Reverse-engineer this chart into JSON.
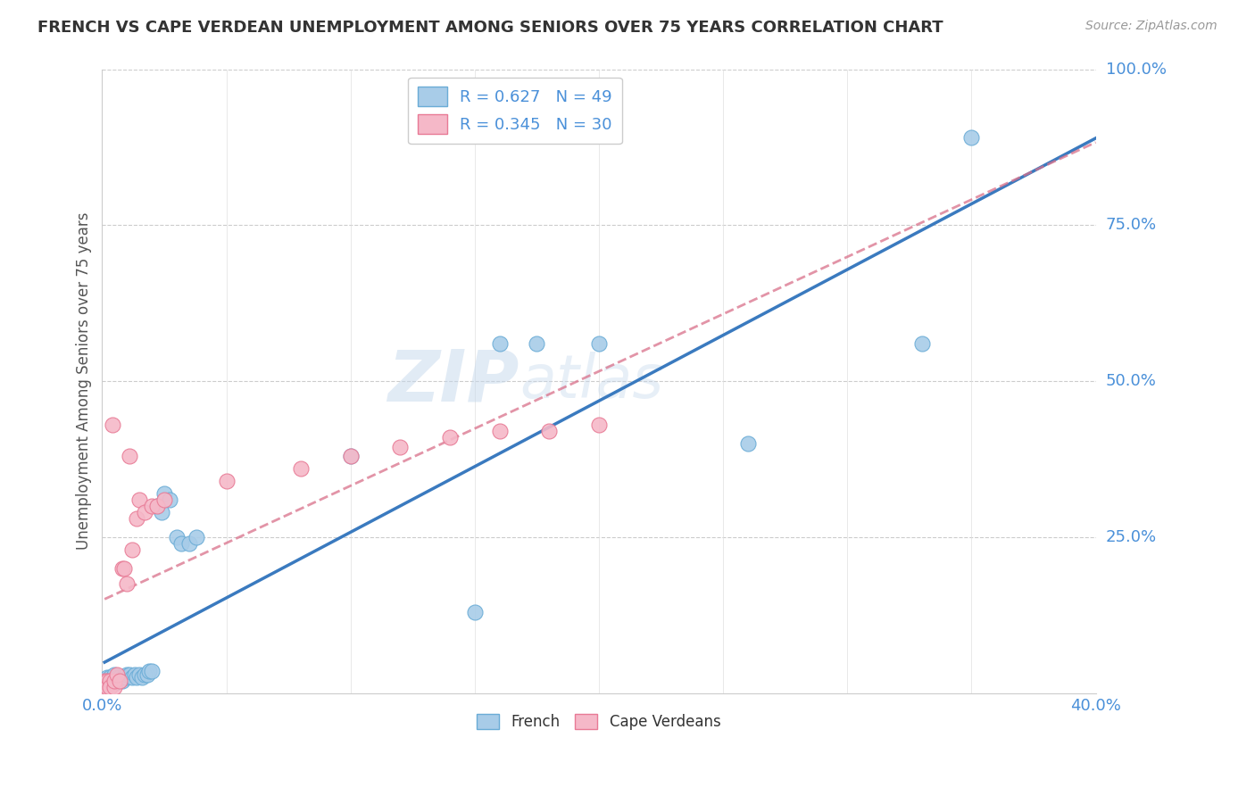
{
  "title": "FRENCH VS CAPE VERDEAN UNEMPLOYMENT AMONG SENIORS OVER 75 YEARS CORRELATION CHART",
  "source": "Source: ZipAtlas.com",
  "ylabel": "Unemployment Among Seniors over 75 years",
  "xlim": [
    0.0,
    0.4
  ],
  "ylim": [
    0.0,
    1.0
  ],
  "french_R": "0.627",
  "french_N": "49",
  "cape_R": "0.345",
  "cape_N": "30",
  "french_color": "#a8cce8",
  "french_edge": "#6aacd6",
  "cape_color": "#f5b8c8",
  "cape_edge": "#e87a95",
  "french_line_color": "#3a7abf",
  "cape_line_color": "#d9708a",
  "watermark_zip": "ZIP",
  "watermark_atlas": "atlas",
  "french_x": [
    0.001,
    0.001,
    0.001,
    0.002,
    0.002,
    0.002,
    0.003,
    0.003,
    0.003,
    0.004,
    0.004,
    0.005,
    0.005,
    0.005,
    0.006,
    0.006,
    0.007,
    0.007,
    0.008,
    0.008,
    0.009,
    0.01,
    0.01,
    0.011,
    0.012,
    0.013,
    0.014,
    0.015,
    0.016,
    0.017,
    0.018,
    0.019,
    0.02,
    0.022,
    0.024,
    0.025,
    0.027,
    0.03,
    0.032,
    0.035,
    0.038,
    0.1,
    0.15,
    0.16,
    0.175,
    0.2,
    0.26,
    0.33,
    0.35
  ],
  "french_y": [
    0.02,
    0.015,
    0.01,
    0.02,
    0.015,
    0.025,
    0.015,
    0.02,
    0.025,
    0.02,
    0.015,
    0.015,
    0.02,
    0.03,
    0.02,
    0.025,
    0.02,
    0.025,
    0.02,
    0.025,
    0.025,
    0.025,
    0.03,
    0.03,
    0.025,
    0.03,
    0.025,
    0.03,
    0.025,
    0.03,
    0.03,
    0.035,
    0.035,
    0.3,
    0.29,
    0.32,
    0.31,
    0.25,
    0.24,
    0.24,
    0.25,
    0.38,
    0.13,
    0.56,
    0.56,
    0.56,
    0.4,
    0.56,
    0.89
  ],
  "cape_x": [
    0.001,
    0.001,
    0.002,
    0.002,
    0.003,
    0.003,
    0.004,
    0.005,
    0.005,
    0.006,
    0.007,
    0.008,
    0.009,
    0.01,
    0.011,
    0.012,
    0.014,
    0.015,
    0.017,
    0.02,
    0.022,
    0.025,
    0.05,
    0.08,
    0.1,
    0.12,
    0.14,
    0.16,
    0.18,
    0.2
  ],
  "cape_y": [
    0.02,
    0.01,
    0.02,
    0.01,
    0.02,
    0.01,
    0.43,
    0.01,
    0.02,
    0.03,
    0.02,
    0.2,
    0.2,
    0.175,
    0.38,
    0.23,
    0.28,
    0.31,
    0.29,
    0.3,
    0.3,
    0.31,
    0.34,
    0.36,
    0.38,
    0.395,
    0.41,
    0.42,
    0.42,
    0.43
  ]
}
